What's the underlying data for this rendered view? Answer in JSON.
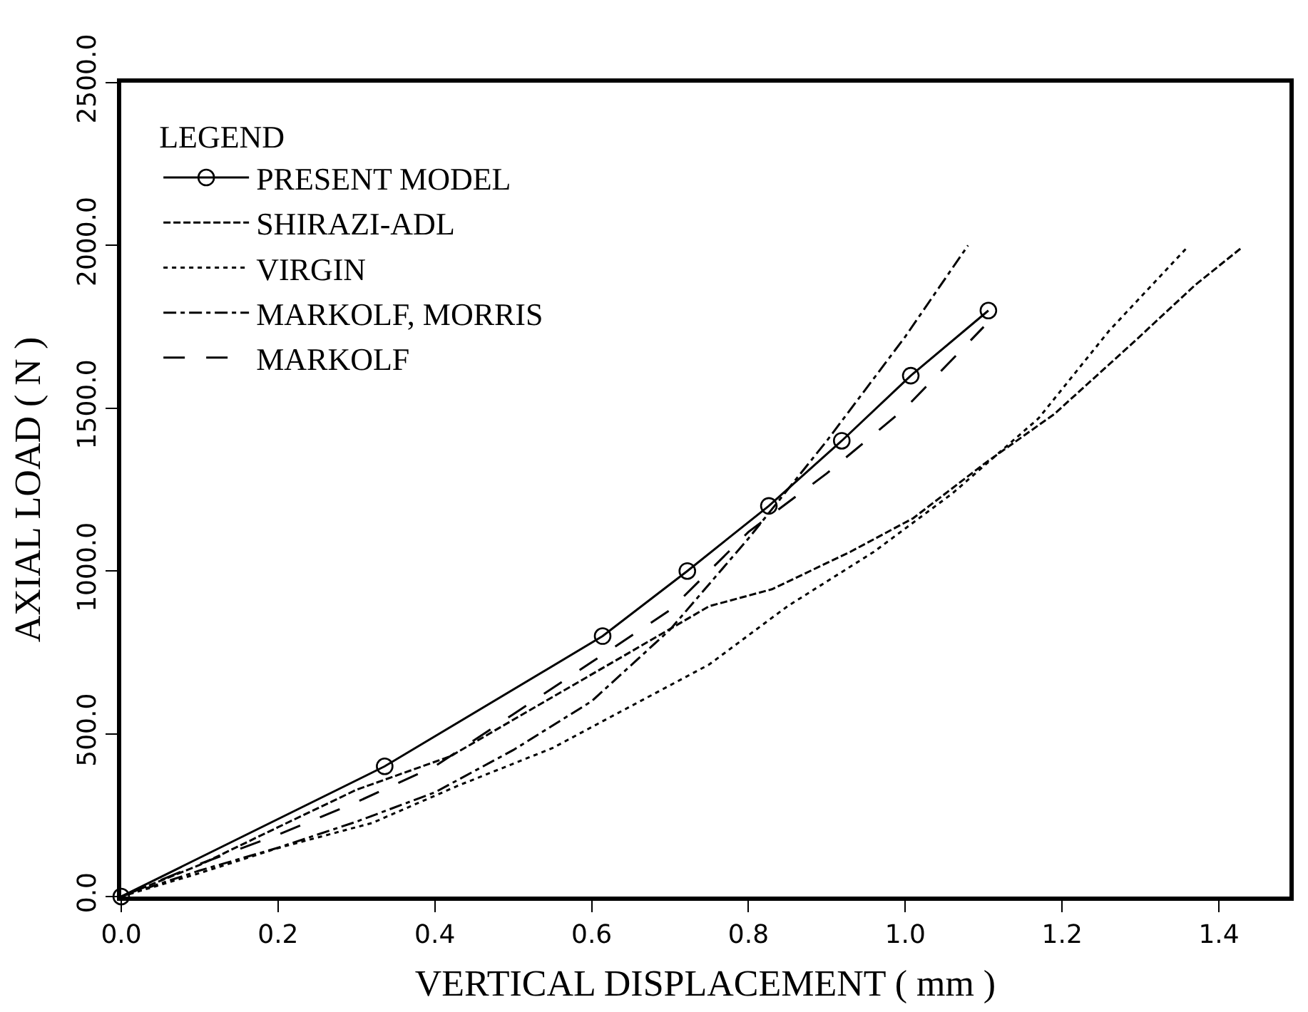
{
  "chart_data": {
    "type": "line",
    "xlabel": "VERTICAL DISPLACEMENT ( mm )",
    "ylabel": "AXIAL LOAD ( N )",
    "legend_title": "LEGEND",
    "xlim": [
      0,
      1.49
    ],
    "ylim": [
      0,
      2500
    ],
    "xticks": [
      {
        "value": 0,
        "label": "0.0"
      },
      {
        "value": 0.2,
        "label": "0.2"
      },
      {
        "value": 0.4,
        "label": "0.4"
      },
      {
        "value": 0.6,
        "label": "0.6"
      },
      {
        "value": 0.8,
        "label": "0.8"
      },
      {
        "value": 1.0,
        "label": "1.0"
      },
      {
        "value": 1.2,
        "label": "1.2"
      },
      {
        "value": 1.4,
        "label": "1.4"
      }
    ],
    "yticks": [
      {
        "value": 0,
        "label": "0.0"
      },
      {
        "value": 500,
        "label": "500.0"
      },
      {
        "value": 1000,
        "label": "1000.0"
      },
      {
        "value": 1500,
        "label": "1500.0"
      },
      {
        "value": 2000,
        "label": "2000.0"
      },
      {
        "value": 2500,
        "label": "2500.0"
      }
    ],
    "legend": "top left",
    "series": [
      {
        "name": "PRESENT MODEL",
        "color": "#000000",
        "marker": "circle",
        "line_style": "solid",
        "x": [
          0,
          0.336,
          0.614,
          0.722,
          0.826,
          0.919,
          1.007,
          1.106
        ],
        "values": [
          0,
          400,
          800,
          1000,
          1200,
          1400,
          1600,
          1800
        ]
      },
      {
        "name": "SHIRAZI-ADL",
        "color": "#000000",
        "marker": "none",
        "line_style": "dashed",
        "x": [
          0,
          0.1,
          0.2,
          0.3,
          0.42,
          0.53,
          0.64,
          0.75,
          0.83,
          0.93,
          1.01,
          1.1,
          1.19,
          1.29,
          1.37,
          1.43
        ],
        "values": [
          0,
          97,
          213,
          328,
          431,
          585,
          738,
          892,
          944,
          1059,
          1162,
          1328,
          1482,
          1700,
          1879,
          1995
        ]
      },
      {
        "name": "VIRGIN",
        "color": "#000000",
        "marker": "none",
        "line_style": "dotted",
        "x": [
          0,
          0.1,
          0.2,
          0.32,
          0.43,
          0.55,
          0.64,
          0.75,
          0.85,
          0.96,
          1.06,
          1.17,
          1.26,
          1.36
        ],
        "values": [
          0,
          72,
          149,
          226,
          341,
          456,
          572,
          713,
          892,
          1059,
          1238,
          1469,
          1738,
          1995
        ]
      },
      {
        "name": "MARKOLF, MORRIS",
        "color": "#000000",
        "marker": "none",
        "line_style": "dashdot",
        "x": [
          0,
          0.1,
          0.2,
          0.3,
          0.4,
          0.5,
          0.6,
          0.7,
          0.8,
          0.9,
          1.0,
          1.08
        ],
        "values": [
          0,
          80,
          150,
          230,
          320,
          450,
          600,
          820,
          1100,
          1400,
          1720,
          2000
        ]
      },
      {
        "name": "MARKOLF",
        "color": "#000000",
        "marker": "none",
        "line_style": "longdash",
        "x": [
          0,
          0.1,
          0.2,
          0.3,
          0.4,
          0.5,
          0.6,
          0.7,
          0.8,
          0.9,
          1.0,
          1.1
        ],
        "values": [
          0,
          100,
          190,
          290,
          400,
          560,
          720,
          880,
          1120,
          1300,
          1500,
          1750
        ]
      }
    ]
  }
}
